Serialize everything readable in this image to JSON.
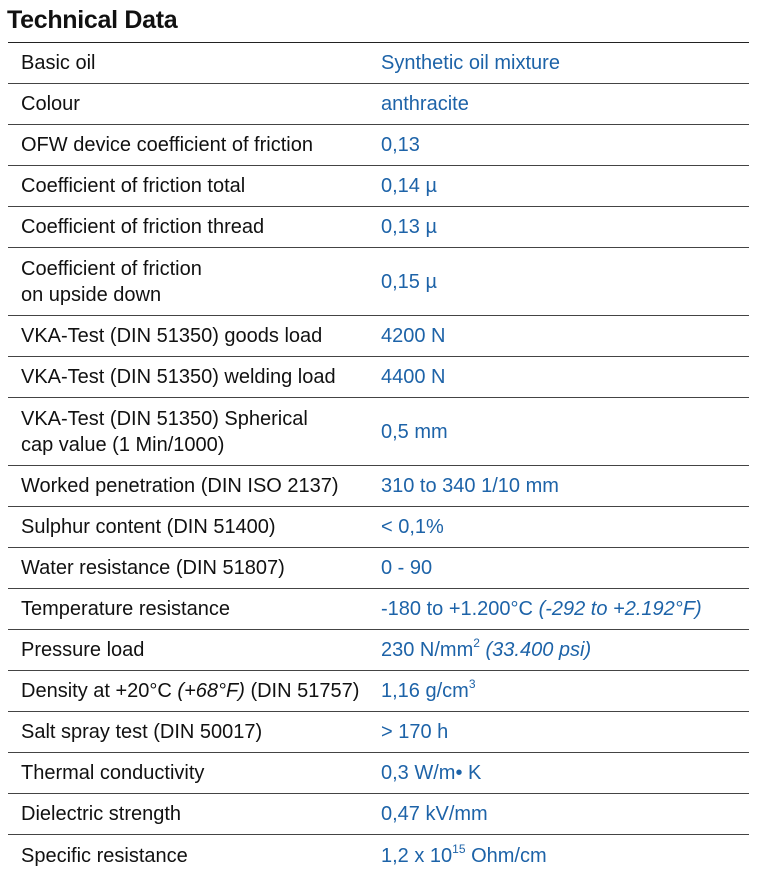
{
  "title": "Technical Data",
  "rows": [
    {
      "label": "Basic oil",
      "value": "Synthetic oil mixture"
    },
    {
      "label": "Colour",
      "value": "anthracite"
    },
    {
      "label": "OFW device coefficient of friction",
      "value": "0,13"
    },
    {
      "label": "Coefficient of friction total",
      "value": "0,14 µ"
    },
    {
      "label": "Coefficient of friction thread",
      "value": "0,13 µ"
    },
    {
      "label_line1": "Coefficient of friction",
      "label_line2": "on upside down",
      "value": "0,15 µ"
    },
    {
      "label": "VKA-Test (DIN 51350) goods load",
      "value": "4200 N"
    },
    {
      "label": "VKA-Test (DIN 51350) welding load",
      "value": "4400 N"
    },
    {
      "label_line1": "VKA-Test (DIN 51350) Spherical",
      "label_line2": "cap value (1 Min/1000)",
      "value": "0,5 mm"
    },
    {
      "label": "Worked penetration (DIN ISO 2137)",
      "value": "310 to 340 1/10 mm"
    },
    {
      "label": "Sulphur content (DIN 51400)",
      "value": "< 0,1%"
    },
    {
      "label": "Water resistance (DIN 51807)",
      "value": "0 - 90"
    },
    {
      "label": "Temperature resistance",
      "value": "-180 to +1.200°C",
      "value_italic": "(-292 to +2.192°F)"
    },
    {
      "label": "Pressure load",
      "value": "230 N/mm",
      "value_sup": "2",
      "value_italic": "(33.400 psi)"
    },
    {
      "label_pre": "Density at +20°C",
      "label_italic": "(+68°F)",
      "label_post": "(DIN 51757)",
      "value": "1,16 g/cm",
      "value_sup": "3"
    },
    {
      "label": "Salt spray test (DIN 50017)",
      "value": "> 170 h"
    },
    {
      "label": "Thermal conductivity",
      "value": "0,3 W/m• K"
    },
    {
      "label": "Dielectric strength",
      "value": "0,47 kV/mm"
    },
    {
      "label": "Specific resistance",
      "value": "1,2 x 10",
      "value_sup": "15",
      "value_post": "Ohm/cm"
    }
  ]
}
